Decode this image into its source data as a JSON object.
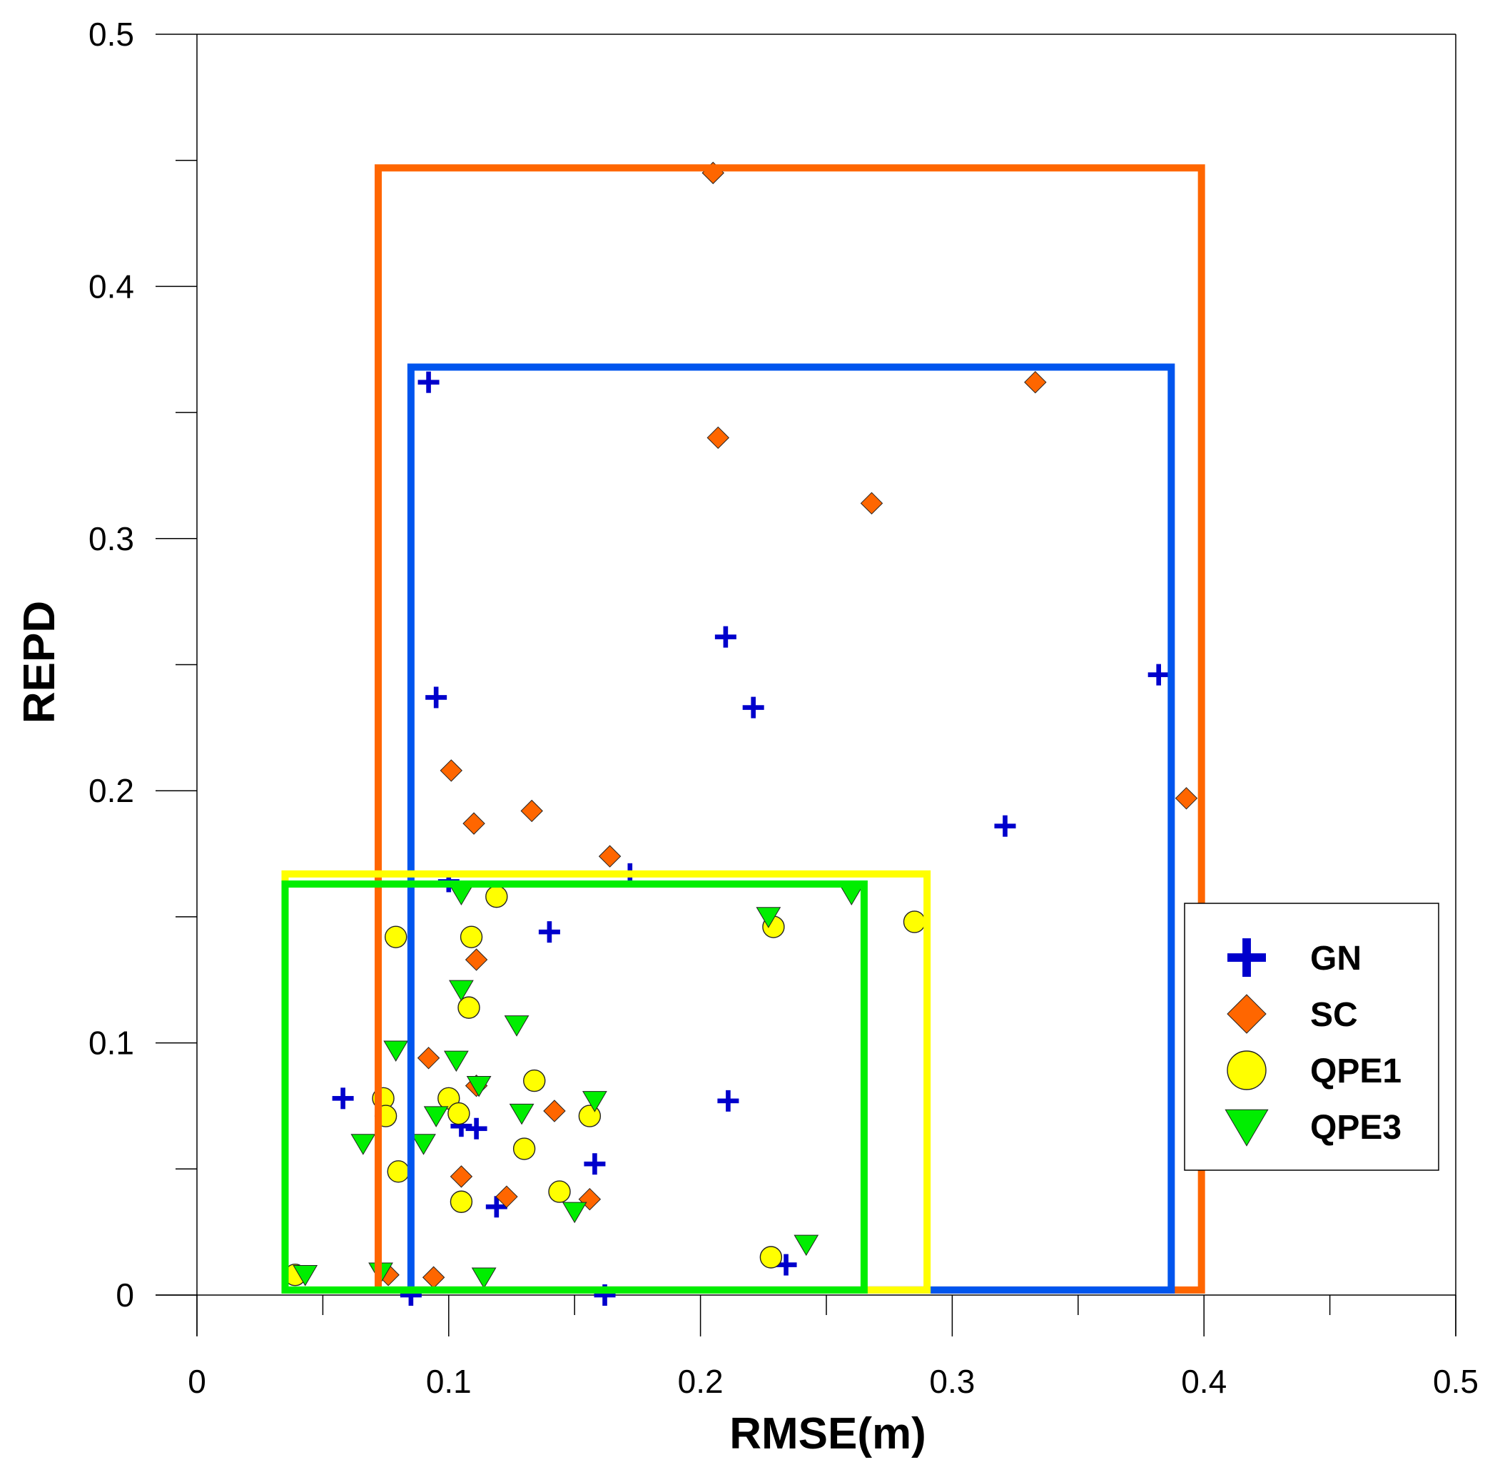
{
  "chart_data": {
    "type": "scatter",
    "title": "",
    "xlabel": "RMSE(m)",
    "ylabel": "REPD",
    "xlim": [
      0,
      0.5
    ],
    "ylim": [
      0,
      0.5
    ],
    "x_ticks": [
      0,
      0.1,
      0.2,
      0.3,
      0.4,
      0.5
    ],
    "x_tick_labels": [
      "0",
      "0.1",
      "0.2",
      "0.3",
      "0.4",
      "0.5"
    ],
    "x_minor_ticks": [
      0.05,
      0.15,
      0.25,
      0.35,
      0.45
    ],
    "y_ticks": [
      0,
      0.1,
      0.2,
      0.3,
      0.4,
      0.5
    ],
    "y_tick_labels": [
      "0",
      "0.1",
      "0.2",
      "0.3",
      "0.4",
      "0.5"
    ],
    "y_minor_ticks": [
      0.05,
      0.15,
      0.25,
      0.35,
      0.45
    ],
    "grid": false,
    "legend_position": "right",
    "series": [
      {
        "name": "GN",
        "marker": "plus",
        "color": "#0000cc",
        "points": [
          [
            0.092,
            0.362
          ],
          [
            0.095,
            0.237
          ],
          [
            0.21,
            0.261
          ],
          [
            0.221,
            0.233
          ],
          [
            0.382,
            0.246
          ],
          [
            0.321,
            0.186
          ],
          [
            0.14,
            0.144
          ],
          [
            0.058,
            0.078
          ],
          [
            0.105,
            0.067
          ],
          [
            0.111,
            0.066
          ],
          [
            0.158,
            0.052
          ],
          [
            0.119,
            0.035
          ],
          [
            0.211,
            0.077
          ],
          [
            0.234,
            0.012
          ],
          [
            0.085,
            0.0
          ],
          [
            0.162,
            0.0
          ],
          [
            0.1,
            0.164
          ],
          [
            0.172,
            0.167
          ]
        ]
      },
      {
        "name": "SC",
        "marker": "diamond",
        "color": "#ff6600",
        "points": [
          [
            0.205,
            0.445
          ],
          [
            0.207,
            0.34
          ],
          [
            0.333,
            0.362
          ],
          [
            0.268,
            0.314
          ],
          [
            0.101,
            0.208
          ],
          [
            0.11,
            0.187
          ],
          [
            0.133,
            0.192
          ],
          [
            0.164,
            0.174
          ],
          [
            0.393,
            0.197
          ],
          [
            0.111,
            0.133
          ],
          [
            0.092,
            0.094
          ],
          [
            0.111,
            0.083
          ],
          [
            0.142,
            0.073
          ],
          [
            0.105,
            0.047
          ],
          [
            0.123,
            0.039
          ],
          [
            0.156,
            0.038
          ],
          [
            0.076,
            0.008
          ],
          [
            0.094,
            0.007
          ]
        ]
      },
      {
        "name": "QPE1",
        "marker": "circle",
        "color": "#ffff00",
        "points": [
          [
            0.119,
            0.158
          ],
          [
            0.079,
            0.142
          ],
          [
            0.109,
            0.142
          ],
          [
            0.229,
            0.146
          ],
          [
            0.285,
            0.148
          ],
          [
            0.108,
            0.114
          ],
          [
            0.134,
            0.085
          ],
          [
            0.074,
            0.078
          ],
          [
            0.1,
            0.078
          ],
          [
            0.075,
            0.071
          ],
          [
            0.104,
            0.072
          ],
          [
            0.156,
            0.071
          ],
          [
            0.13,
            0.058
          ],
          [
            0.08,
            0.049
          ],
          [
            0.144,
            0.041
          ],
          [
            0.105,
            0.037
          ],
          [
            0.228,
            0.015
          ],
          [
            0.039,
            0.008
          ]
        ]
      },
      {
        "name": "QPE3",
        "marker": "triangle-down",
        "color": "#00ee00",
        "points": [
          [
            0.105,
            0.159
          ],
          [
            0.227,
            0.15
          ],
          [
            0.26,
            0.159
          ],
          [
            0.105,
            0.121
          ],
          [
            0.127,
            0.107
          ],
          [
            0.079,
            0.097
          ],
          [
            0.103,
            0.093
          ],
          [
            0.112,
            0.083
          ],
          [
            0.158,
            0.077
          ],
          [
            0.095,
            0.071
          ],
          [
            0.129,
            0.072
          ],
          [
            0.066,
            0.06
          ],
          [
            0.09,
            0.06
          ],
          [
            0.15,
            0.033
          ],
          [
            0.242,
            0.02
          ],
          [
            0.043,
            0.008
          ],
          [
            0.073,
            0.009
          ],
          [
            0.114,
            0.007
          ]
        ]
      }
    ],
    "range_boxes": [
      {
        "series": "SC",
        "color": "#ff6600",
        "x": [
          0.072,
          0.399
        ],
        "y": [
          0.002,
          0.447
        ]
      },
      {
        "series": "GN",
        "color": "#0055ee",
        "x": [
          0.085,
          0.387
        ],
        "y": [
          0.002,
          0.368
        ]
      },
      {
        "series": "QPE1",
        "color": "#ffff00",
        "x": [
          0.035,
          0.29
        ],
        "y": [
          0.002,
          0.167
        ]
      },
      {
        "series": "QPE3",
        "color": "#00ee00",
        "x": [
          0.035,
          0.265
        ],
        "y": [
          0.002,
          0.163
        ]
      }
    ]
  }
}
